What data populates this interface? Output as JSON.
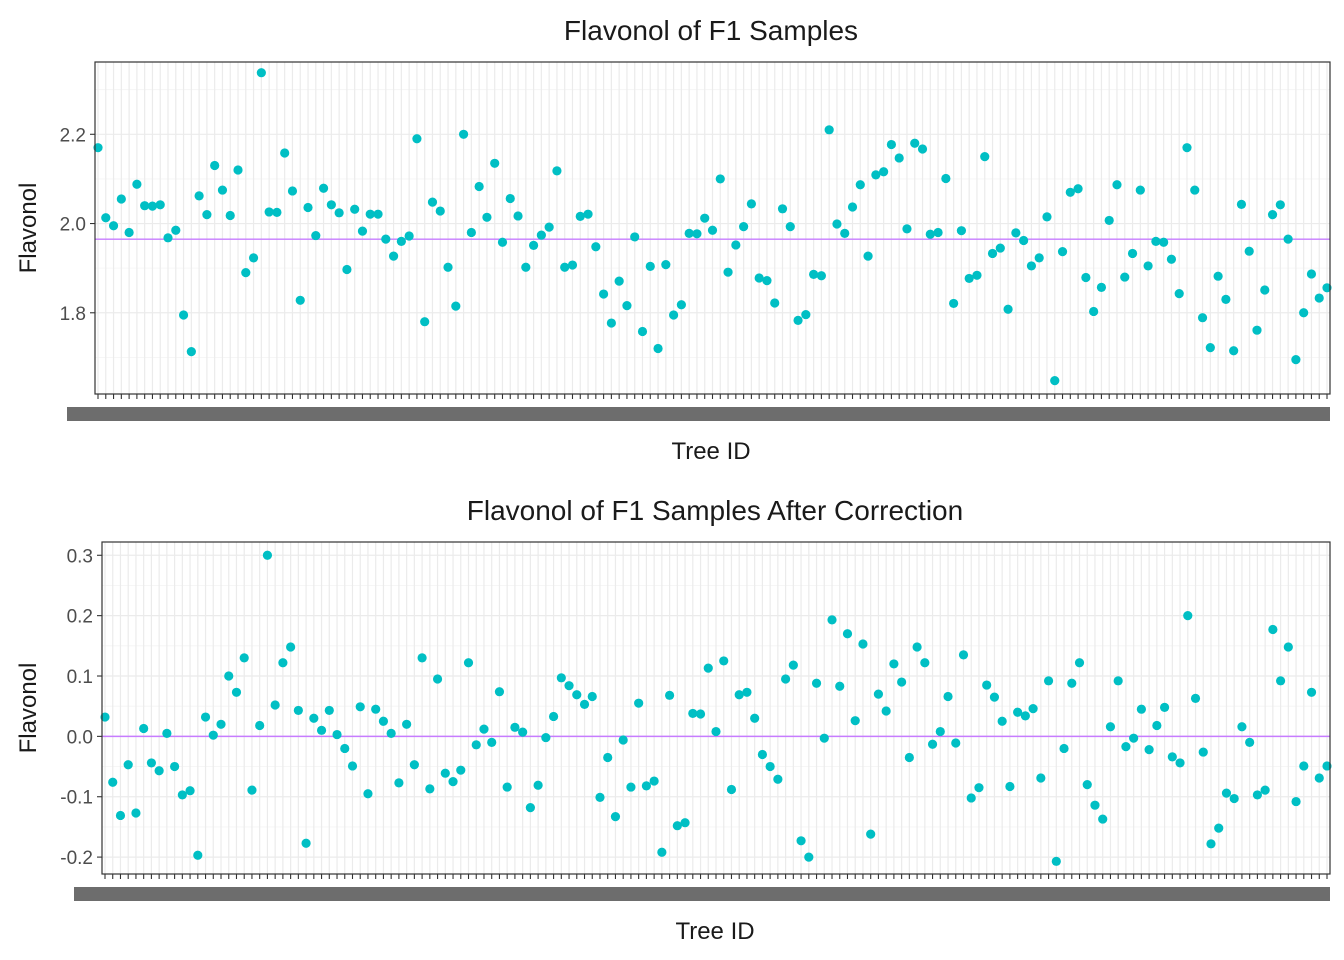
{
  "chart_data": [
    {
      "type": "scatter",
      "title": "Flavonol of F1 Samples",
      "xlabel": "Tree ID",
      "ylabel": "Flavonol",
      "ylim": [
        1.618,
        2.362
      ],
      "yticks": [
        1.8,
        2.0,
        2.2
      ],
      "ytick_labels": [
        "1.8",
        "2.0",
        "2.2"
      ],
      "hline": 1.965,
      "point_color": "#00BFC4",
      "hline_color": "#C77CFF",
      "grid": true,
      "values": [
        2.17,
        2.013,
        1.995,
        2.055,
        1.98,
        2.088,
        2.04,
        2.039,
        2.042,
        1.968,
        1.985,
        1.795,
        1.713,
        2.062,
        2.02,
        2.13,
        2.075,
        2.018,
        2.12,
        1.89,
        1.923,
        2.338,
        2.026,
        2.025,
        2.158,
        2.073,
        1.828,
        2.036,
        1.973,
        2.079,
        2.042,
        2.024,
        1.897,
        2.032,
        1.983,
        2.021,
        2.021,
        1.965,
        1.927,
        1.96,
        1.972,
        2.19,
        1.78,
        2.048,
        2.028,
        1.902,
        1.815,
        2.2,
        1.98,
        2.083,
        2.014,
        2.135,
        1.958,
        2.056,
        2.017,
        1.902,
        1.951,
        1.974,
        1.992,
        2.118,
        1.902,
        1.907,
        2.016,
        2.021,
        1.948,
        1.842,
        1.777,
        1.871,
        1.816,
        1.97,
        1.758,
        1.904,
        1.72,
        1.908,
        1.795,
        1.818,
        1.978,
        1.977,
        2.012,
        1.985,
        2.1,
        1.891,
        1.952,
        1.993,
        2.044,
        1.878,
        1.872,
        1.822,
        2.033,
        1.993,
        1.783,
        1.796,
        1.886,
        1.883,
        2.21,
        1.999,
        1.978,
        2.037,
        2.087,
        1.927,
        2.109,
        2.116,
        2.177,
        2.147,
        1.988,
        2.18,
        2.167,
        1.976,
        1.98,
        2.101,
        1.821,
        1.984,
        1.877,
        1.884,
        2.15,
        1.933,
        1.945,
        1.808,
        1.979,
        1.962,
        1.905,
        1.923,
        2.015,
        1.648,
        1.937,
        2.07,
        2.078,
        1.879,
        1.803,
        1.857,
        2.007,
        2.087,
        1.88,
        1.933,
        2.075,
        1.905,
        1.96,
        1.958,
        1.92,
        1.843,
        2.17,
        2.075,
        1.789,
        1.722,
        1.882,
        1.83,
        1.715,
        2.043,
        1.938,
        1.761,
        1.851,
        2.02,
        2.042,
        1.965,
        1.695,
        1.8,
        1.887,
        1.833,
        1.856
      ]
    },
    {
      "type": "scatter",
      "title": "Flavonol of F1 Samples After Correction",
      "xlabel": "Tree ID",
      "ylabel": "Flavonol",
      "ylim": [
        -0.228,
        0.322
      ],
      "yticks": [
        -0.2,
        -0.1,
        0.0,
        0.1,
        0.2,
        0.3
      ],
      "ytick_labels": [
        "-0.2",
        "-0.1",
        "0.0",
        "0.1",
        "0.2",
        "0.3"
      ],
      "hline": 0.0,
      "point_color": "#00BFC4",
      "hline_color": "#C77CFF",
      "grid": true,
      "values": [
        0.032,
        -0.076,
        -0.131,
        -0.047,
        -0.127,
        0.013,
        -0.044,
        -0.057,
        0.005,
        -0.05,
        -0.097,
        -0.09,
        -0.197,
        0.032,
        0.002,
        0.02,
        0.1,
        0.073,
        0.13,
        -0.089,
        0.018,
        0.3,
        0.052,
        0.122,
        0.148,
        0.043,
        -0.177,
        0.03,
        0.01,
        0.043,
        0.003,
        -0.02,
        -0.049,
        0.049,
        -0.095,
        0.045,
        0.025,
        0.005,
        -0.077,
        0.02,
        -0.047,
        0.13,
        -0.087,
        0.095,
        -0.061,
        -0.075,
        -0.056,
        0.122,
        -0.014,
        0.012,
        -0.01,
        0.074,
        -0.084,
        0.015,
        0.007,
        -0.118,
        -0.081,
        -0.002,
        0.033,
        0.097,
        0.084,
        0.069,
        0.053,
        0.066,
        -0.101,
        -0.035,
        -0.133,
        -0.006,
        -0.084,
        0.055,
        -0.082,
        -0.074,
        -0.192,
        0.068,
        -0.148,
        -0.143,
        0.038,
        0.037,
        0.113,
        0.008,
        0.125,
        -0.088,
        0.069,
        0.073,
        0.03,
        -0.03,
        -0.05,
        -0.071,
        0.095,
        0.118,
        -0.173,
        -0.2,
        0.088,
        -0.003,
        0.193,
        0.083,
        0.17,
        0.026,
        0.153,
        -0.162,
        0.07,
        0.042,
        0.12,
        0.09,
        -0.035,
        0.148,
        0.122,
        -0.013,
        0.008,
        0.066,
        -0.011,
        0.135,
        -0.102,
        -0.085,
        0.085,
        0.065,
        0.025,
        -0.083,
        0.04,
        0.034,
        0.046,
        -0.069,
        0.092,
        -0.207,
        -0.02,
        0.088,
        0.122,
        -0.08,
        -0.114,
        -0.137,
        0.016,
        0.092,
        -0.017,
        -0.003,
        0.045,
        -0.022,
        0.018,
        0.048,
        -0.034,
        -0.044,
        0.2,
        0.063,
        -0.026,
        -0.178,
        -0.152,
        -0.094,
        -0.103,
        0.016,
        -0.01,
        -0.097,
        -0.089,
        0.177,
        0.092,
        0.148,
        -0.108,
        -0.049,
        0.073,
        -0.069,
        -0.049
      ]
    }
  ]
}
